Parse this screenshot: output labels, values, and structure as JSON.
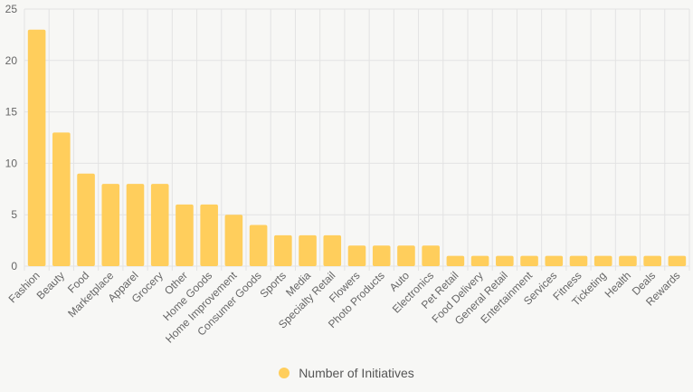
{
  "chart_data": {
    "type": "bar",
    "categories": [
      "Fashion",
      "Beauty",
      "Food",
      "Marketplace",
      "Apparel",
      "Grocery",
      "Other",
      "Home Goods",
      "Home Improvement",
      "Consumer Goods",
      "Sports",
      "Media",
      "Specialty Retail",
      "Flowers",
      "Photo Products",
      "Auto",
      "Electronics",
      "Pet Retail",
      "Food Delivery",
      "General Retail",
      "Entertainment",
      "Services",
      "Fitness",
      "Ticketing",
      "Health",
      "Deals",
      "Rewards"
    ],
    "series": [
      {
        "name": "Number of Initiatives",
        "values": [
          23,
          13,
          9,
          8,
          8,
          8,
          6,
          6,
          5,
          4,
          3,
          3,
          3,
          2,
          2,
          2,
          2,
          1,
          1,
          1,
          1,
          1,
          1,
          1,
          1,
          1,
          1
        ]
      }
    ],
    "ylim": [
      0,
      25
    ],
    "yticks": [
      0,
      5,
      10,
      15,
      20,
      25
    ],
    "grid": true,
    "legend_position": "bottom",
    "colors": {
      "bar": "#ffce5c",
      "grid": "#e3e3e3",
      "axis_text": "#666666"
    }
  }
}
